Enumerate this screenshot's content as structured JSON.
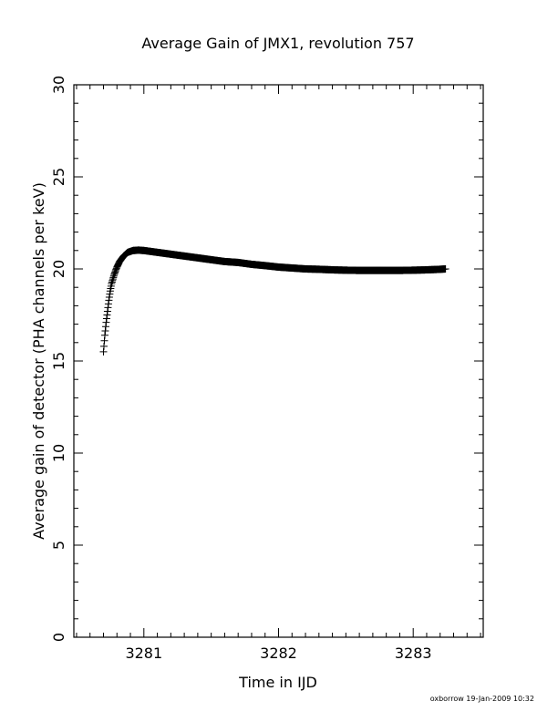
{
  "chart_data": {
    "type": "scatter",
    "marker": "plus",
    "title": "Average Gain of JMX1, revolution 757",
    "xlabel": "Time in IJD",
    "ylabel": "Average gain of detector (PHA channels per keV)",
    "xlim": [
      3280.48,
      3283.52
    ],
    "ylim": [
      0,
      30
    ],
    "xticks": [
      3281,
      3282,
      3283
    ],
    "xtick_labels": [
      "3281",
      "3282",
      "3283"
    ],
    "yticks": [
      0,
      5,
      10,
      15,
      20,
      25,
      30
    ],
    "ytick_labels": [
      "0",
      "5",
      "10",
      "15",
      "20",
      "25",
      "30"
    ],
    "grid": false,
    "series": [
      {
        "x": [
          3280.7,
          3280.71,
          3280.72,
          3280.73,
          3280.74,
          3280.75,
          3280.76,
          3280.78,
          3280.8,
          3280.82,
          3280.85,
          3280.88,
          3280.92,
          3280.96,
          3281.0,
          3281.05,
          3281.1,
          3281.2,
          3281.3,
          3281.4,
          3281.5,
          3281.6,
          3281.7,
          3281.8,
          3281.9,
          3282.0,
          3282.1,
          3282.2,
          3282.3,
          3282.4,
          3282.5,
          3282.6,
          3282.7,
          3282.8,
          3282.9,
          3283.0,
          3283.1,
          3283.2,
          3283.24
        ],
        "y": [
          15.5,
          16.4,
          17.1,
          17.7,
          18.3,
          18.8,
          19.2,
          19.7,
          20.1,
          20.4,
          20.7,
          20.9,
          21.0,
          21.02,
          21.0,
          20.95,
          20.9,
          20.8,
          20.7,
          20.6,
          20.5,
          20.4,
          20.35,
          20.25,
          20.18,
          20.1,
          20.05,
          20.0,
          19.98,
          19.95,
          19.93,
          19.92,
          19.92,
          19.92,
          19.92,
          19.93,
          19.95,
          19.98,
          20.0
        ]
      }
    ]
  },
  "footer": "oxborrow 19-Jan-2009 10:32"
}
